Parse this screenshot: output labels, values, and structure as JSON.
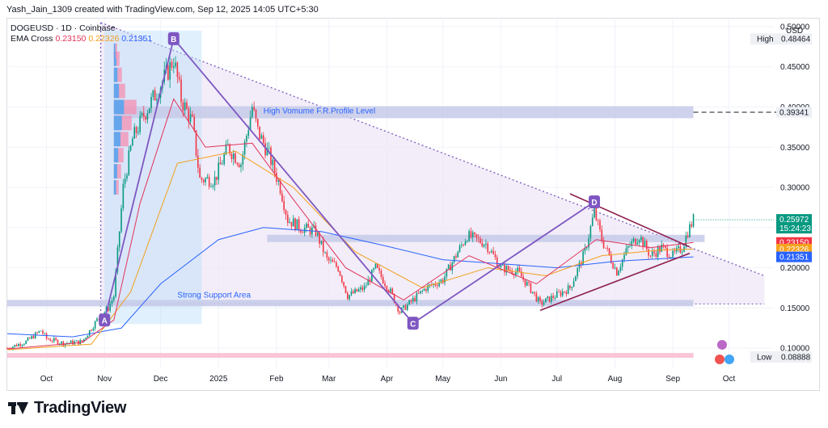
{
  "header": {
    "text": "Yash_Jain_1309 created with TradingView.com, Sep 12, 2025 14:05 UTC+5:30"
  },
  "legend": {
    "symbol_line": "DOGEUSD · 1D · Coinbase",
    "ema_label": "EMA Cross",
    "ema_values": [
      "0.23150",
      "0.22326",
      "0.21351"
    ]
  },
  "footer": {
    "brand": "TradingView"
  },
  "colors": {
    "up": "#089981",
    "down": "#f23645",
    "ema_fast": "#e3335a",
    "ema_mid": "#f29f1b",
    "ema_slow": "#2962ff",
    "pattern": "#7e57c2",
    "pattern_fill": "#ede7f6",
    "sym_triangle": "#8e1f4f"
  },
  "chart_data": {
    "type": "candlestick",
    "title": "DOGEUSD · 1D · Coinbase",
    "currency": "USD",
    "y_scale": "linear",
    "ylim": [
      0.075,
      0.51
    ],
    "xlim": [
      "2024-09-10",
      "2025-10-25"
    ],
    "y_ticks": [
      "0.50000",
      "0.45000",
      "0.40000",
      "0.35000",
      "0.30000",
      "0.25000",
      "0.20000",
      "0.15000",
      "0.10000"
    ],
    "x_ticks": [
      {
        "label": "Oct",
        "date": "2024-10-01"
      },
      {
        "label": "Nov",
        "date": "2024-11-01"
      },
      {
        "label": "Dec",
        "date": "2024-12-01"
      },
      {
        "label": "2025",
        "date": "2025-01-01"
      },
      {
        "label": "Feb",
        "date": "2025-02-01"
      },
      {
        "label": "Mar",
        "date": "2025-03-01"
      },
      {
        "label": "Apr",
        "date": "2025-04-01"
      },
      {
        "label": "May",
        "date": "2025-05-01"
      },
      {
        "label": "Jun",
        "date": "2025-06-01"
      },
      {
        "label": "Jul",
        "date": "2025-07-01"
      },
      {
        "label": "Aug",
        "date": "2025-08-01"
      },
      {
        "label": "Sep",
        "date": "2025-09-01"
      },
      {
        "label": "Oct",
        "date": "2025-10-01"
      }
    ],
    "close_path": [
      [
        "2024-09-10",
        0.1
      ],
      [
        "2024-09-20",
        0.108
      ],
      [
        "2024-09-28",
        0.122
      ],
      [
        "2024-10-01",
        0.112
      ],
      [
        "2024-10-10",
        0.106
      ],
      [
        "2024-10-20",
        0.108
      ],
      [
        "2024-10-28",
        0.135
      ],
      [
        "2024-11-03",
        0.15
      ],
      [
        "2024-11-06",
        0.165
      ],
      [
        "2024-11-11",
        0.3
      ],
      [
        "2024-11-16",
        0.36
      ],
      [
        "2024-11-22",
        0.39
      ],
      [
        "2024-11-28",
        0.415
      ],
      [
        "2024-12-04",
        0.44
      ],
      [
        "2024-12-08",
        0.46
      ],
      [
        "2024-12-12",
        0.41
      ],
      [
        "2024-12-18",
        0.38
      ],
      [
        "2024-12-22",
        0.31
      ],
      [
        "2024-12-30",
        0.31
      ],
      [
        "2025-01-06",
        0.35
      ],
      [
        "2025-01-13",
        0.33
      ],
      [
        "2025-01-19",
        0.4
      ],
      [
        "2025-01-22",
        0.37
      ],
      [
        "2025-01-28",
        0.34
      ],
      [
        "2025-02-03",
        0.3
      ],
      [
        "2025-02-07",
        0.26
      ],
      [
        "2025-02-14",
        0.25
      ],
      [
        "2025-02-22",
        0.245
      ],
      [
        "2025-02-28",
        0.21
      ],
      [
        "2025-03-06",
        0.2
      ],
      [
        "2025-03-11",
        0.165
      ],
      [
        "2025-03-20",
        0.175
      ],
      [
        "2025-03-26",
        0.2
      ],
      [
        "2025-04-03",
        0.17
      ],
      [
        "2025-04-08",
        0.145
      ],
      [
        "2025-04-15",
        0.16
      ],
      [
        "2025-04-22",
        0.175
      ],
      [
        "2025-05-01",
        0.185
      ],
      [
        "2025-05-09",
        0.22
      ],
      [
        "2025-05-14",
        0.24
      ],
      [
        "2025-05-24",
        0.23
      ],
      [
        "2025-06-01",
        0.2
      ],
      [
        "2025-06-10",
        0.195
      ],
      [
        "2025-06-18",
        0.17
      ],
      [
        "2025-06-22",
        0.155
      ],
      [
        "2025-06-30",
        0.165
      ],
      [
        "2025-07-08",
        0.175
      ],
      [
        "2025-07-16",
        0.22
      ],
      [
        "2025-07-21",
        0.27
      ],
      [
        "2025-07-25",
        0.235
      ],
      [
        "2025-08-02",
        0.195
      ],
      [
        "2025-08-08",
        0.225
      ],
      [
        "2025-08-14",
        0.24
      ],
      [
        "2025-08-20",
        0.215
      ],
      [
        "2025-08-26",
        0.225
      ],
      [
        "2025-09-01",
        0.215
      ],
      [
        "2025-09-06",
        0.225
      ],
      [
        "2025-09-09",
        0.245
      ],
      [
        "2025-09-12",
        0.26
      ]
    ],
    "ema_fast_path": [
      [
        "2024-09-10",
        0.099
      ],
      [
        "2024-10-20",
        0.107
      ],
      [
        "2024-11-06",
        0.135
      ],
      [
        "2024-11-20",
        0.28
      ],
      [
        "2024-12-08",
        0.41
      ],
      [
        "2024-12-25",
        0.35
      ],
      [
        "2025-01-19",
        0.355
      ],
      [
        "2025-02-10",
        0.285
      ],
      [
        "2025-03-10",
        0.2
      ],
      [
        "2025-04-10",
        0.16
      ],
      [
        "2025-05-15",
        0.215
      ],
      [
        "2025-06-20",
        0.18
      ],
      [
        "2025-07-22",
        0.235
      ],
      [
        "2025-08-20",
        0.225
      ],
      [
        "2025-09-12",
        0.2315
      ]
    ],
    "ema_mid_path": [
      [
        "2024-09-10",
        0.098
      ],
      [
        "2024-10-25",
        0.105
      ],
      [
        "2024-11-15",
        0.17
      ],
      [
        "2024-12-10",
        0.33
      ],
      [
        "2025-01-10",
        0.345
      ],
      [
        "2025-02-10",
        0.3
      ],
      [
        "2025-03-15",
        0.22
      ],
      [
        "2025-04-20",
        0.175
      ],
      [
        "2025-05-25",
        0.2
      ],
      [
        "2025-06-25",
        0.19
      ],
      [
        "2025-07-25",
        0.215
      ],
      [
        "2025-08-25",
        0.222
      ],
      [
        "2025-09-12",
        0.2233
      ]
    ],
    "ema_slow_path": [
      [
        "2024-09-10",
        0.118
      ],
      [
        "2024-10-15",
        0.114
      ],
      [
        "2024-11-10",
        0.125
      ],
      [
        "2024-12-01",
        0.18
      ],
      [
        "2025-01-01",
        0.235
      ],
      [
        "2025-01-25",
        0.25
      ],
      [
        "2025-02-25",
        0.245
      ],
      [
        "2025-03-30",
        0.228
      ],
      [
        "2025-05-01",
        0.21
      ],
      [
        "2025-06-01",
        0.205
      ],
      [
        "2025-07-01",
        0.2
      ],
      [
        "2025-08-01",
        0.208
      ],
      [
        "2025-09-12",
        0.2135
      ]
    ],
    "markers": [
      {
        "label": "A",
        "date": "2024-11-01",
        "price": 0.135
      },
      {
        "label": "B",
        "date": "2024-12-08",
        "price": 0.485
      },
      {
        "label": "C",
        "date": "2025-04-15",
        "price": 0.131
      },
      {
        "label": "D",
        "date": "2025-07-21",
        "price": 0.282
      }
    ],
    "zones": [
      {
        "label": "High Vomume F.R.Profile Level",
        "from": "2024-11-06",
        "to": "2025-09-12",
        "y": [
          0.386,
          0.401
        ]
      },
      {
        "label": "Strong Support Area",
        "from": "2024-09-10",
        "to": "2025-09-12",
        "y": [
          0.152,
          0.16
        ]
      },
      {
        "label": "",
        "from": "2025-01-27",
        "to": "2025-09-18",
        "y": [
          0.232,
          0.241
        ]
      },
      {
        "label": "",
        "from": "2024-09-10",
        "to": "2025-09-12",
        "y": [
          0.088,
          0.094
        ]
      }
    ],
    "hvp_dashed_level": 0.39341,
    "price_labels": [
      {
        "label": "USD",
        "value": null,
        "kind": "currency"
      },
      {
        "label": "High",
        "value": "0.48464",
        "y": 0.48464,
        "kind": "high"
      },
      {
        "label": "",
        "value": "0.39341",
        "y": 0.39341,
        "kind": "level"
      },
      {
        "label": "",
        "value": "0.25972",
        "extra": "15:24:23",
        "y": 0.25972,
        "kind": "last"
      },
      {
        "label": "",
        "value": "0.23150",
        "y": 0.2315,
        "kind": "ema_fast"
      },
      {
        "label": "",
        "value": "0.22326",
        "y": 0.22326,
        "kind": "ema_mid"
      },
      {
        "label": "",
        "value": "0.21351",
        "y": 0.21351,
        "kind": "ema_slow"
      },
      {
        "label": "Low",
        "value": "0.08888",
        "y": 0.08888,
        "kind": "low"
      }
    ]
  }
}
